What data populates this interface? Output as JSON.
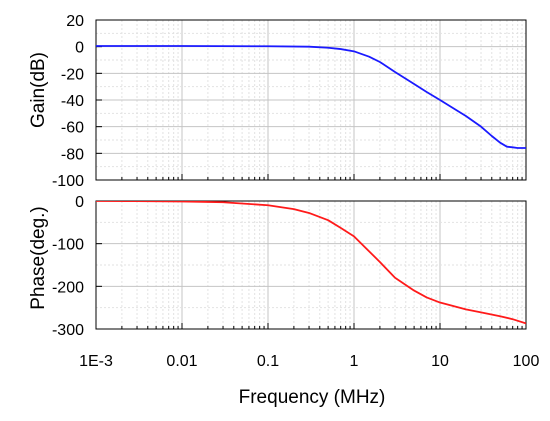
{
  "chart_data": [
    {
      "type": "line",
      "panel": "gain",
      "ylabel": "Gain(dB)",
      "xscale": "log",
      "xlim": [
        0.001,
        100
      ],
      "ylim": [
        -100,
        20
      ],
      "yticks": [
        20,
        0,
        -20,
        -40,
        -60,
        -80,
        -100
      ],
      "ytick_labels": [
        "20",
        "0",
        "-20",
        "-40",
        "-60",
        "-80",
        "-100"
      ],
      "grid": true,
      "series": [
        {
          "color": "#1a1aff",
          "x": [
            0.001,
            0.01,
            0.1,
            0.3,
            0.5,
            0.7,
            1,
            1.5,
            2,
            3,
            5,
            7,
            10,
            15,
            20,
            30,
            40,
            50,
            60,
            70,
            80,
            100
          ],
          "y": [
            0.5,
            0.5,
            0.3,
            0,
            -0.8,
            -1.8,
            -3.5,
            -7.5,
            -11.5,
            -19,
            -28,
            -34,
            -40,
            -47,
            -52,
            -60,
            -67,
            -72,
            -75,
            -75.5,
            -76,
            -76
          ]
        }
      ]
    },
    {
      "type": "line",
      "panel": "phase",
      "xlabel": "Frequency (MHz)",
      "ylabel": "Phase(deg.)",
      "xscale": "log",
      "xlim": [
        0.001,
        100
      ],
      "ylim": [
        -300,
        0
      ],
      "yticks": [
        0,
        -100,
        -200,
        -300
      ],
      "ytick_labels": [
        "0",
        "-100",
        "-200",
        "-300"
      ],
      "xticks": [
        0.001,
        0.01,
        0.1,
        1,
        10,
        100
      ],
      "xtick_labels": [
        "1E-3",
        "0.01",
        "0.1",
        "1",
        "10",
        "100"
      ],
      "grid": true,
      "series": [
        {
          "color": "#ff1a1a",
          "x": [
            0.001,
            0.003,
            0.01,
            0.03,
            0.1,
            0.2,
            0.3,
            0.5,
            0.7,
            1,
            1.5,
            2,
            3,
            5,
            7,
            10,
            20,
            30,
            50,
            70,
            100
          ],
          "y": [
            0,
            -0.3,
            -1,
            -3,
            -10,
            -19,
            -28,
            -45,
            -63,
            -83,
            -118,
            -143,
            -180,
            -210,
            -226,
            -238,
            -254,
            -261,
            -270,
            -277,
            -287
          ]
        }
      ]
    }
  ]
}
